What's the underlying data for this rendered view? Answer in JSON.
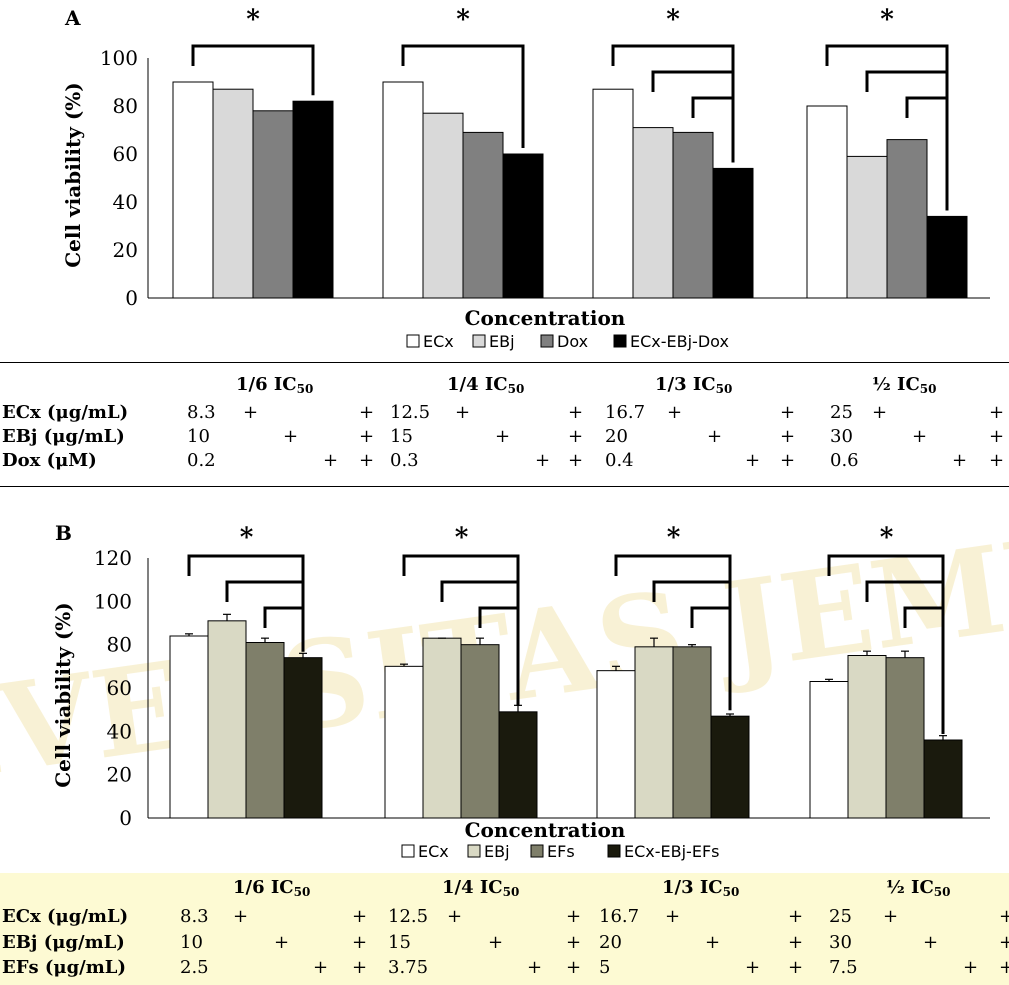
{
  "watermark": {
    "text": "UNIVERSITAS JEMBER",
    "color": "#f3e6b4"
  },
  "panels": {
    "A": {
      "label": "A",
      "ylabel": "Cell viability (%)",
      "xlabel": "Concentration",
      "legend": [
        "ECx",
        "EBj",
        "Dox",
        "ECx-EBj-Dox"
      ],
      "star": "*",
      "table": {
        "groups": [
          "1/6 IC",
          "1/4 IC",
          "1/3 IC",
          "½ IC"
        ],
        "sub": "50",
        "rows": [
          {
            "label": "ECx (μg/mL)",
            "values": [
              "8.3",
              "12.5",
              "16.7",
              "25"
            ]
          },
          {
            "label": "EBj (μg/mL)",
            "values": [
              "10",
              "15",
              "20",
              "30"
            ]
          },
          {
            "label": "Dox (μM)",
            "values": [
              "0.2",
              "0.3",
              "0.4",
              "0.6"
            ]
          }
        ],
        "plus": "+"
      }
    },
    "B": {
      "label": "B",
      "ylabel": "Cell viability (%)",
      "xlabel": "Concentration",
      "legend": [
        "ECx",
        "EBj",
        "EFs",
        "ECx-EBj-EFs"
      ],
      "star": "*",
      "table": {
        "groups": [
          "1/6 IC",
          "1/4 IC",
          "1/3 IC",
          "½ IC"
        ],
        "sub": "50",
        "rows": [
          {
            "label": "ECx (μg/mL)",
            "values": [
              "8.3",
              "12.5",
              "16.7",
              "25"
            ]
          },
          {
            "label": "EBj (μg/mL)",
            "values": [
              "10",
              "15",
              "20",
              "30"
            ]
          },
          {
            "label": "EFs (μg/mL)",
            "values": [
              "2.5",
              "3.75",
              "5",
              "7.5"
            ]
          }
        ],
        "plus": "+"
      }
    }
  },
  "chart_data": [
    {
      "panel": "A",
      "type": "bar",
      "xlabel": "Concentration",
      "ylabel": "Cell viability (%)",
      "ylim": [
        0,
        100
      ],
      "yticks": [
        0,
        20,
        40,
        60,
        80,
        100
      ],
      "groups": 4,
      "series": [
        {
          "name": "ECx",
          "color": "#ffffff",
          "values": [
            90,
            90,
            87,
            80
          ]
        },
        {
          "name": "EBj",
          "color": "#d9d9d9",
          "values": [
            87,
            77,
            71,
            59
          ]
        },
        {
          "name": "Dox",
          "color": "#808080",
          "values": [
            78,
            69,
            69,
            66
          ]
        },
        {
          "name": "ECx-EBj-Dox",
          "color": "#000000",
          "values": [
            82,
            60,
            54,
            34
          ]
        }
      ],
      "significance": [
        {
          "group": 0,
          "pairs": [
            [
              0,
              3
            ]
          ]
        },
        {
          "group": 1,
          "pairs": [
            [
              0,
              3
            ]
          ]
        },
        {
          "group": 2,
          "pairs": [
            [
              0,
              3
            ],
            [
              1,
              3
            ],
            [
              2,
              3
            ]
          ]
        },
        {
          "group": 3,
          "pairs": [
            [
              0,
              3
            ],
            [
              1,
              3
            ],
            [
              2,
              3
            ]
          ]
        }
      ]
    },
    {
      "panel": "B",
      "type": "bar",
      "xlabel": "Concentration",
      "ylabel": "Cell viability (%)",
      "ylim": [
        0,
        120
      ],
      "yticks": [
        0,
        20,
        40,
        60,
        80,
        100,
        120
      ],
      "groups": 4,
      "series": [
        {
          "name": "ECx",
          "color": "#ffffff",
          "values": [
            84,
            70,
            68,
            63
          ],
          "errors": [
            1,
            1,
            2,
            1
          ]
        },
        {
          "name": "EBj",
          "color": "#d9d9c4",
          "values": [
            91,
            83,
            79,
            75
          ],
          "errors": [
            3,
            0,
            4,
            2
          ]
        },
        {
          "name": "EFs",
          "color": "#7f7f6a",
          "values": [
            81,
            80,
            79,
            74
          ],
          "errors": [
            2,
            3,
            1,
            3
          ]
        },
        {
          "name": "ECx-EBj-EFs",
          "color": "#1a1a0d",
          "values": [
            74,
            49,
            47,
            36
          ],
          "errors": [
            2,
            3,
            1,
            2
          ]
        }
      ],
      "significance": [
        {
          "group": 0,
          "pairs": [
            [
              0,
              3
            ],
            [
              1,
              3
            ],
            [
              2,
              3
            ]
          ]
        },
        {
          "group": 1,
          "pairs": [
            [
              0,
              3
            ],
            [
              1,
              3
            ],
            [
              2,
              3
            ]
          ]
        },
        {
          "group": 2,
          "pairs": [
            [
              0,
              3
            ],
            [
              1,
              3
            ],
            [
              2,
              3
            ]
          ]
        },
        {
          "group": 3,
          "pairs": [
            [
              0,
              3
            ],
            [
              1,
              3
            ],
            [
              2,
              3
            ]
          ]
        }
      ]
    }
  ]
}
